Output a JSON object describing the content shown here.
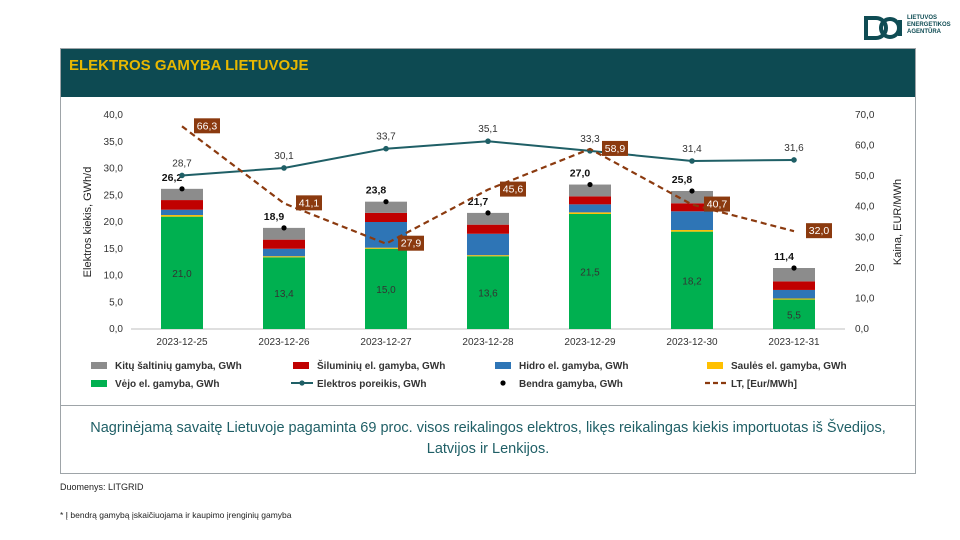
{
  "logo": {
    "line1": "LIETUVOS",
    "line2": "ENERGETIKOS",
    "line3": "AGENTŪRA"
  },
  "header": {
    "title": "ELEKTROS GAMYBA LIETUVOJE"
  },
  "note": "Nagrinėjamą savaitę Lietuvoje pagaminta 69 proc. visos reikalingos elektros, likęs reikalingas kiekis importuotas iš Švedijos, Latvijos ir Lenkijos.",
  "footer": {
    "source": "Duomenys: LITGRID",
    "footnote": "* Į bendrą gamybą įskaičiuojama ir kaupimo įrenginių gamyba"
  },
  "colors": {
    "other": "#8c8c8c",
    "thermal": "#c00000",
    "hydro": "#2e75b6",
    "solar": "#ffc000",
    "wind": "#00b050",
    "demand": "#1f5f66",
    "total": "#000000",
    "price": "#8b3a0f",
    "title_bg": "#0d4a52",
    "title_fg": "#e8b800"
  },
  "chart_data": {
    "type": "bar",
    "categories": [
      "2023-12-25",
      "2023-12-26",
      "2023-12-27",
      "2023-12-28",
      "2023-12-29",
      "2023-12-30",
      "2023-12-31"
    ],
    "ylabel": "Elektros kiekis, GWh/d",
    "y2label": "Kaina, EUR/MWh",
    "ylim": [
      0,
      40
    ],
    "y2lim": [
      0,
      70
    ],
    "yticks": [
      "0,0",
      "5,0",
      "10,0",
      "15,0",
      "20,0",
      "25,0",
      "30,0",
      "35,0",
      "40,0"
    ],
    "y2ticks": [
      "0,0",
      "10,0",
      "20,0",
      "30,0",
      "40,0",
      "50,0",
      "60,0",
      "70,0"
    ],
    "series": [
      {
        "name": "Vėjo el. gamyba, GWh",
        "key": "wind",
        "values": [
          21.0,
          13.4,
          15.0,
          13.6,
          21.5,
          18.2,
          5.5
        ],
        "labels": [
          "21,0",
          "13,4",
          "15,0",
          "13,6",
          "21,5",
          "18,2",
          "5,5"
        ]
      },
      {
        "name": "Saulės el. gamyba, GWh",
        "key": "solar",
        "values": [
          0.3,
          0.2,
          0.2,
          0.2,
          0.3,
          0.3,
          0.2
        ]
      },
      {
        "name": "Hidro el. gamyba, GWh",
        "key": "hydro",
        "values": [
          1.0,
          1.4,
          4.8,
          4.0,
          1.5,
          3.5,
          1.6
        ]
      },
      {
        "name": "Šiluminių el. gamyba, GWh",
        "key": "thermal",
        "values": [
          1.8,
          1.7,
          1.7,
          1.7,
          1.5,
          1.5,
          1.6
        ]
      },
      {
        "name": "Kitų šaltinių gamyba,  GWh",
        "key": "other",
        "values": [
          2.1,
          2.2,
          2.1,
          2.2,
          2.2,
          2.3,
          2.5
        ]
      }
    ],
    "total": {
      "name": "Bendra gamyba, GWh",
      "values": [
        26.2,
        18.9,
        23.8,
        21.7,
        27.0,
        25.8,
        11.4
      ],
      "labels": [
        "26,2",
        "18,9",
        "23,8",
        "21,7",
        "27,0",
        "25,8",
        "11,4"
      ]
    },
    "demand": {
      "name": "Elektros poreikis, GWh",
      "values": [
        28.7,
        30.1,
        33.7,
        35.1,
        33.3,
        31.4,
        31.6
      ],
      "labels": [
        "28,7",
        "30,1",
        "33,7",
        "35,1",
        "33,3",
        "31,4",
        "31,6"
      ]
    },
    "price": {
      "name": "LT, [Eur/MWh]",
      "values": [
        66.3,
        41.1,
        27.9,
        45.6,
        58.9,
        40.7,
        32.0
      ],
      "labels": [
        "66,3",
        "41,1",
        "27,9",
        "45,6",
        "58,9",
        "40,7",
        "32,0"
      ]
    },
    "legend_position": "bottom"
  }
}
